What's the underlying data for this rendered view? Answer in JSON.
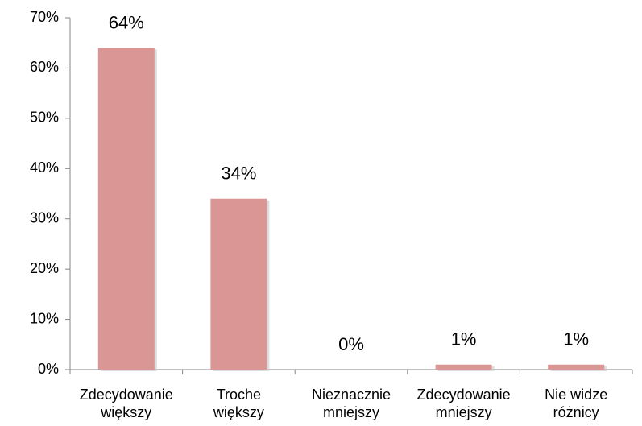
{
  "chart_data": {
    "type": "bar",
    "categories": [
      "Zdecydowanie\nwiększy",
      "Troche\nwiększy",
      "Nieznacznie\nmniejszy",
      "Zdecydowanie\nmniejszy",
      "Nie widze\nróżnicy"
    ],
    "values": [
      64,
      34,
      0,
      1,
      1
    ],
    "value_labels": [
      "64%",
      "34%",
      "0%",
      "1%",
      "1%"
    ],
    "color": "#d99694",
    "ylim": [
      0,
      70
    ],
    "yticks": [
      {
        "value": 0,
        "label": "0%"
      },
      {
        "value": 10,
        "label": "10%"
      },
      {
        "value": 20,
        "label": "20%"
      },
      {
        "value": 30,
        "label": "30%"
      },
      {
        "value": 40,
        "label": "40%"
      },
      {
        "value": 50,
        "label": "50%"
      },
      {
        "value": 60,
        "label": "60%"
      },
      {
        "value": 70,
        "label": "70%"
      }
    ],
    "grid": false
  }
}
